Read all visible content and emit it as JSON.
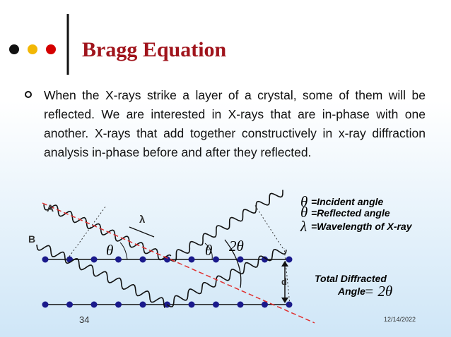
{
  "header": {
    "title": "Bragg Equation"
  },
  "body": {
    "bullet": "When the X-rays strike a layer of a crystal, some of them will be reflected. We are interested in X-rays that are in-phase with one another. X-rays that add together constructively in x-ray diffraction analysis in-phase before and after they reflected."
  },
  "diagram": {
    "labels": {
      "a": "A",
      "b": "B",
      "lambda": "λ",
      "theta_incident": "θ",
      "theta_reflected": "θ",
      "two_theta": "2θ",
      "d": "d"
    },
    "legend": [
      {
        "symbol": "θ",
        "text": "=Incident angle"
      },
      {
        "symbol": "θ",
        "text": "=Reflected  angle"
      },
      {
        "symbol": "λ",
        "text": "=Wavelength of X-ray"
      }
    ],
    "total": {
      "line1": "Total Diffracted",
      "line2": "Angle",
      "value": "= 2θ"
    }
  },
  "footer": {
    "page": "34",
    "date": "12/14/2022"
  }
}
